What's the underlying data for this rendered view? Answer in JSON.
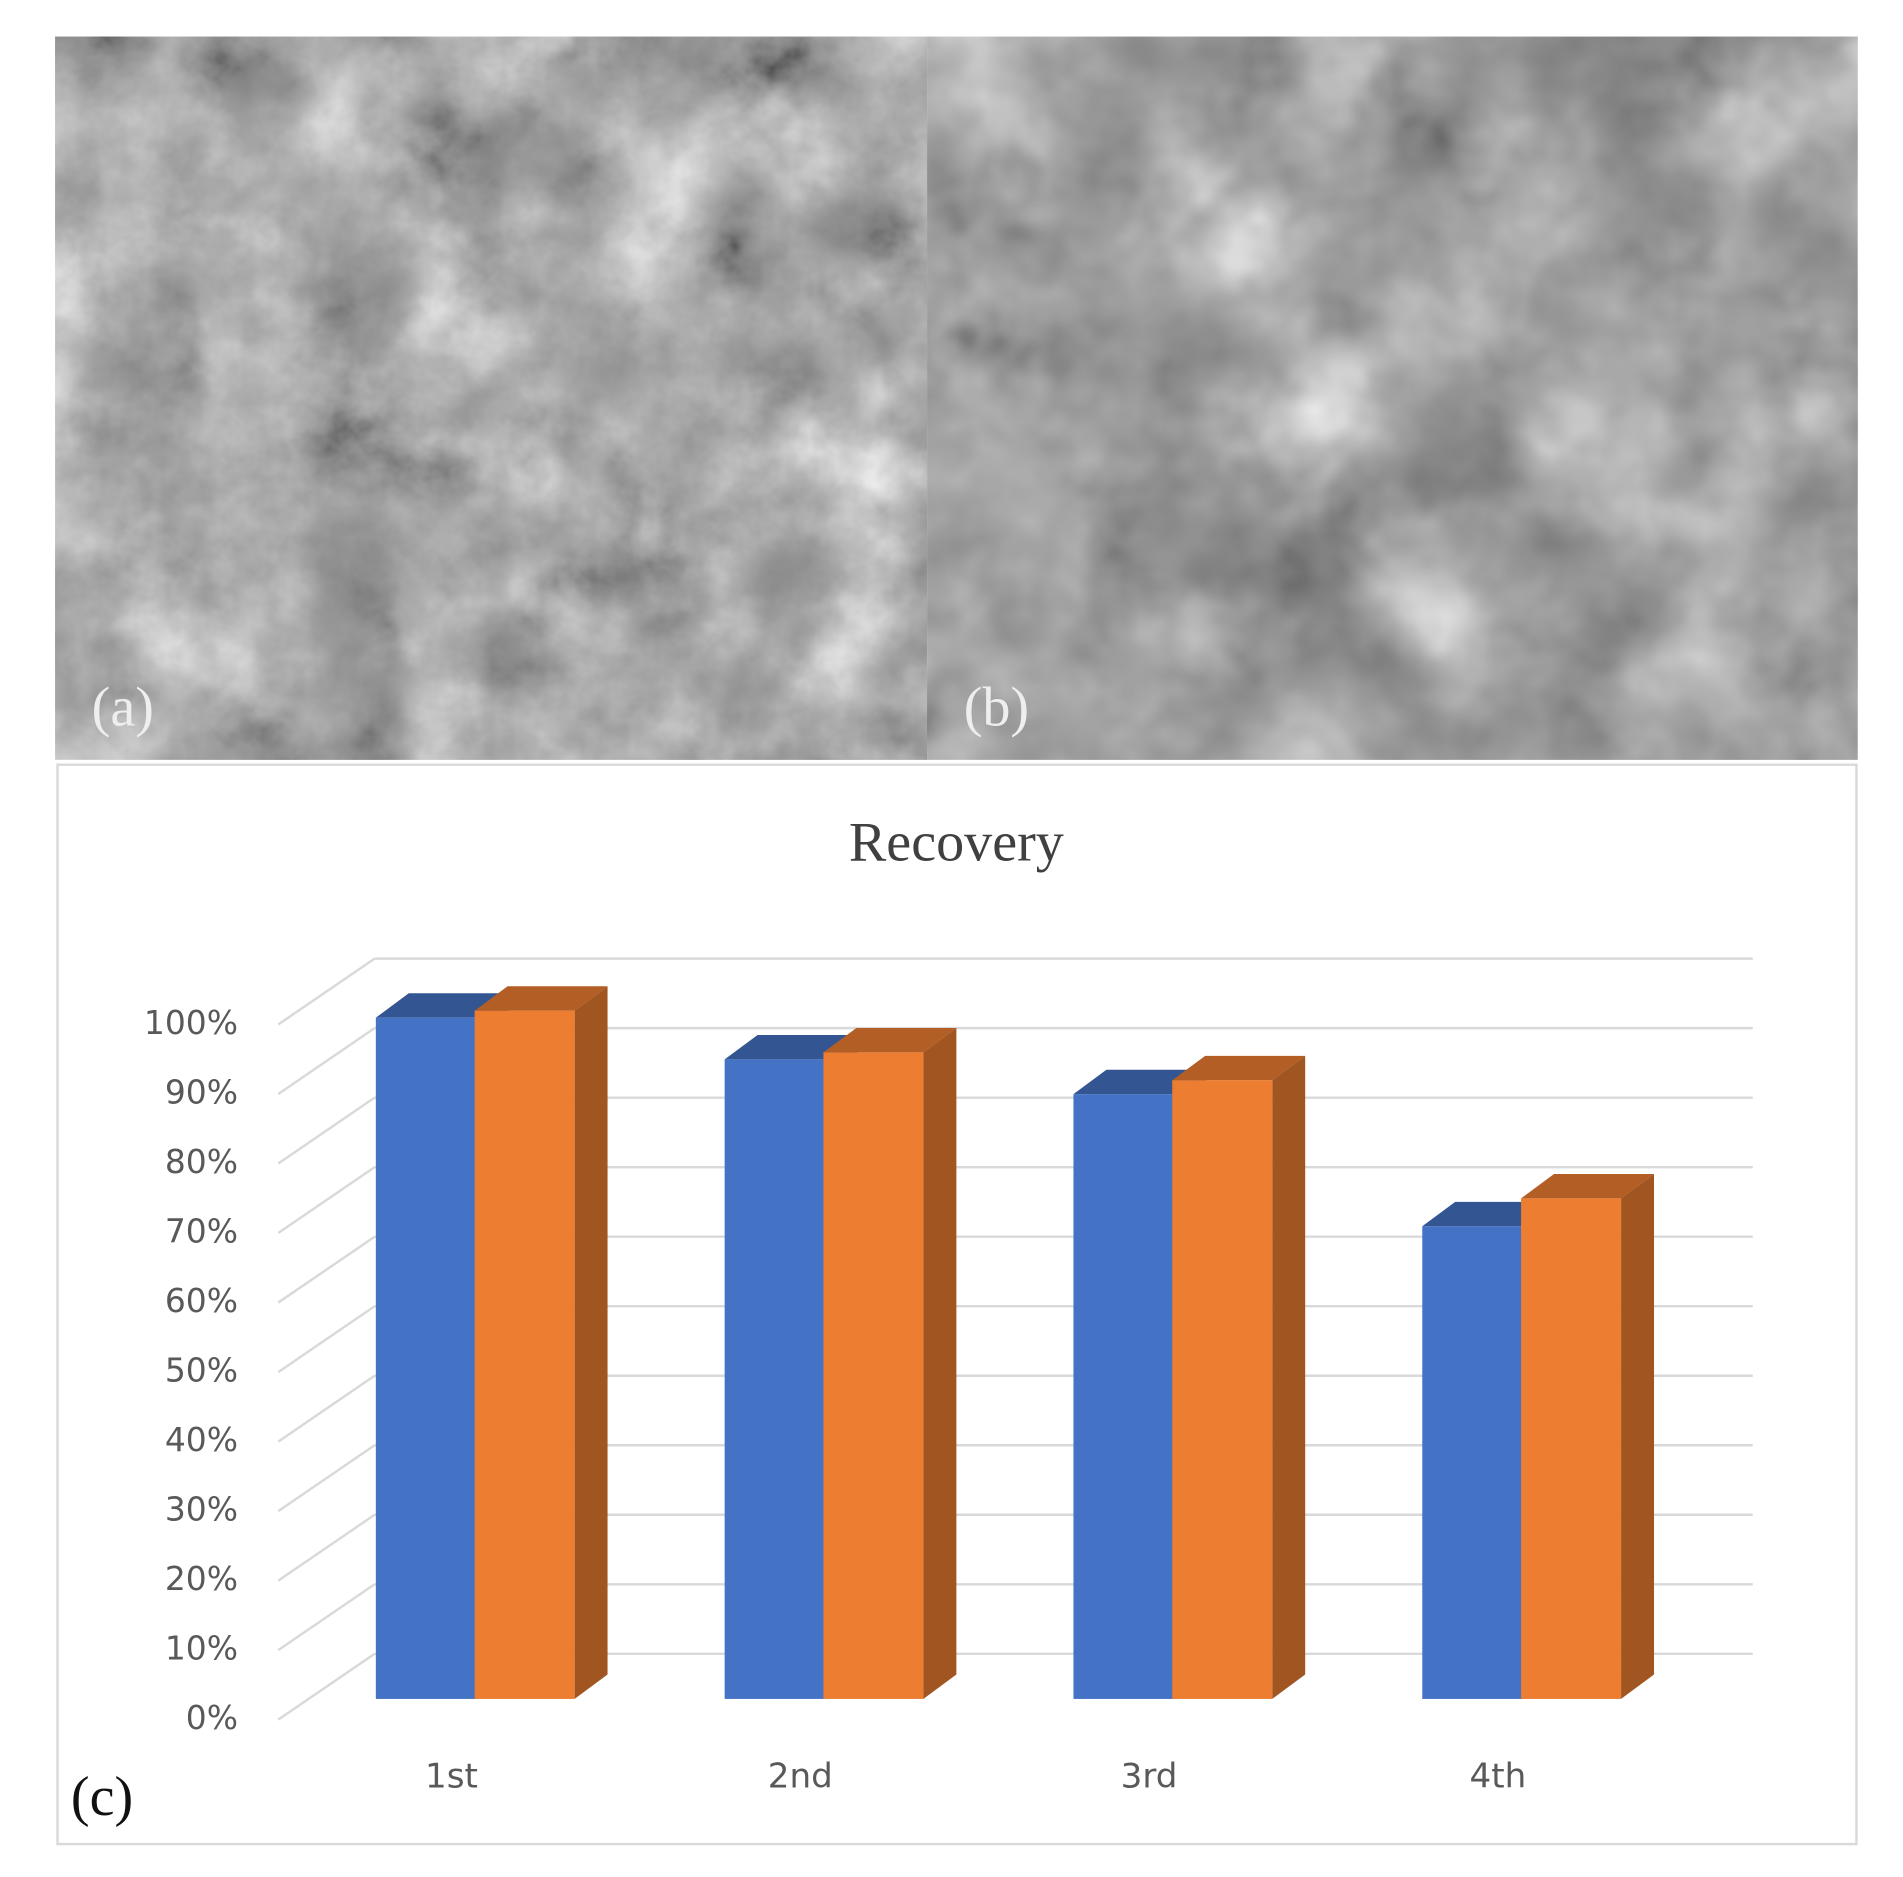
{
  "images": [
    {
      "label": "(a)"
    },
    {
      "label": "(b)"
    }
  ],
  "chart_data": {
    "type": "bar3d",
    "title": "Recovery",
    "panel_label": "(c)",
    "categories": [
      "1st",
      "2nd",
      "3rd",
      "4th"
    ],
    "series": [
      {
        "color": "#4472c4",
        "values": [
          98,
          92,
          87,
          68
        ]
      },
      {
        "color": "#ed7d31",
        "values": [
          99,
          93,
          89,
          72
        ]
      }
    ],
    "ylim": [
      0,
      100
    ],
    "yticks": [
      {
        "value": 0,
        "label": "0%"
      },
      {
        "value": 10,
        "label": "10%"
      },
      {
        "value": 20,
        "label": "20%"
      },
      {
        "value": 30,
        "label": "30%"
      },
      {
        "value": 40,
        "label": "40%"
      },
      {
        "value": 50,
        "label": "50%"
      },
      {
        "value": 60,
        "label": "60%"
      },
      {
        "value": 70,
        "label": "70%"
      },
      {
        "value": 80,
        "label": "80%"
      },
      {
        "value": 90,
        "label": "90%"
      },
      {
        "value": 100,
        "label": "100%"
      }
    ],
    "grid": true
  }
}
